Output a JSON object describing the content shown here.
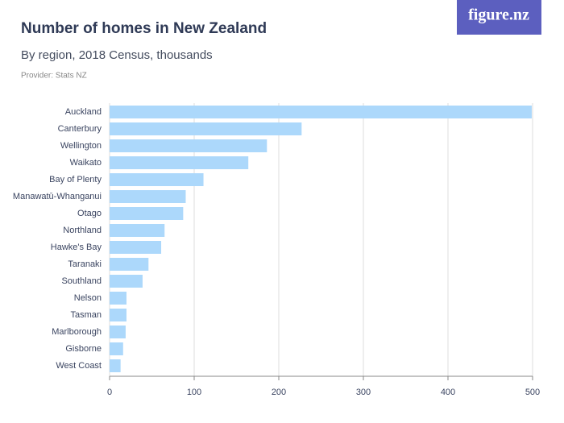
{
  "logo": "figure.nz",
  "chart_data": {
    "type": "barh",
    "title": "Number of homes in New Zealand",
    "subtitle": "By region, 2018 Census, thousands",
    "provider": "Provider: Stats NZ",
    "categories": [
      "Auckland",
      "Canterbury",
      "Wellington",
      "Waikato",
      "Bay of Plenty",
      "Manawatū-Whanganui",
      "Otago",
      "Northland",
      "Hawke's Bay",
      "Taranaki",
      "Southland",
      "Nelson",
      "Tasman",
      "Marlborough",
      "Gisborne",
      "West Coast"
    ],
    "values": [
      499,
      227,
      186,
      164,
      111,
      90,
      87,
      65,
      61,
      46,
      39,
      20,
      20,
      19,
      16,
      13
    ],
    "color": "#acd8fb",
    "xlim": [
      0,
      500
    ],
    "xticks": [
      0,
      100,
      200,
      300,
      400,
      500
    ],
    "grid": true
  }
}
